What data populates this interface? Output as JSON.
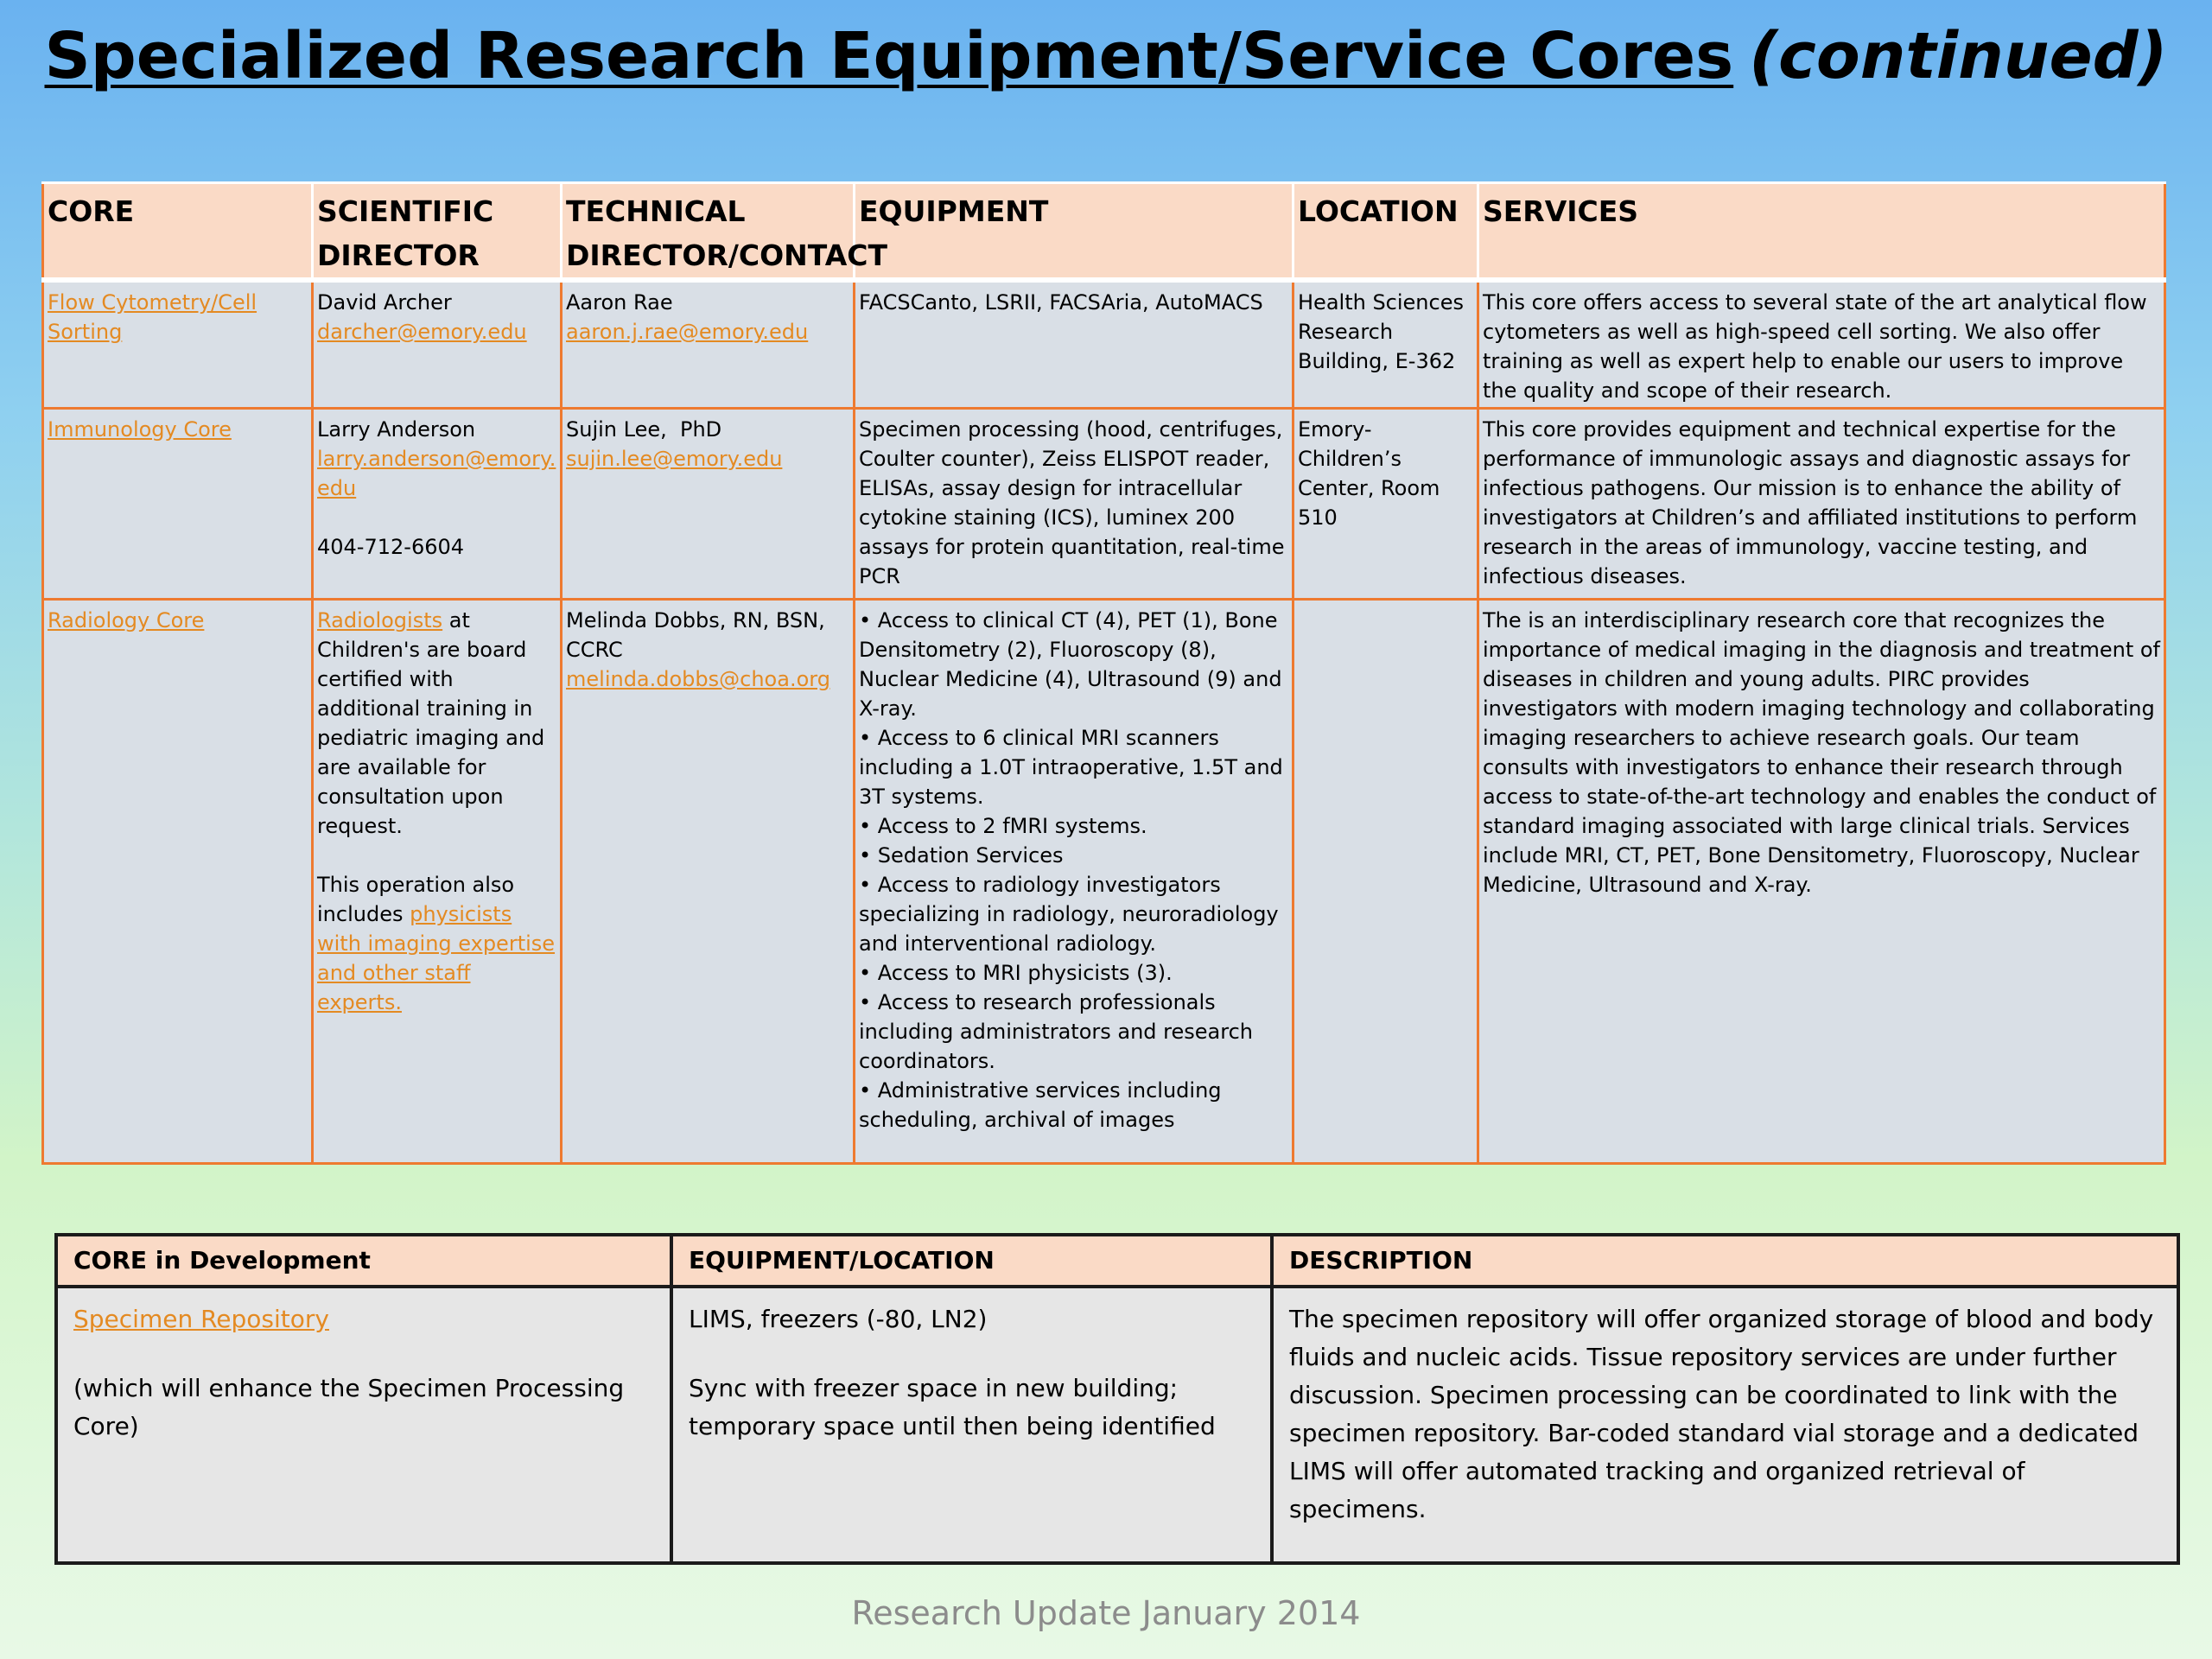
{
  "title": {
    "main": "Specialized Research Equipment/Service Cores",
    "continued": "(continued)"
  },
  "cores_table": {
    "headers": {
      "core": "CORE",
      "scientific_director": "SCIENTIFIC\nDIRECTOR",
      "technical_director": "TECHNICAL\nDIRECTOR/CONTACT",
      "equipment": "EQUIPMENT",
      "location": "LOCATION",
      "services": "SERVICES"
    },
    "rows": [
      {
        "core": "Flow Cytometry/Cell Sorting",
        "sci_name": "David Archer",
        "sci_email": "darcher@emory.edu",
        "tech_name": "Aaron Rae",
        "tech_email": "aaron.j.rae@emory.edu",
        "equipment": "FACSCanto, LSRII, FACSAria, AutoMACS",
        "location": "Health Sciences Research Building, E-362",
        "services": "This core offers access to several state of the art analytical flow cytometers as well as high-speed cell sorting. We also offer training as well as expert help to enable our users to improve the quality and scope of their research."
      },
      {
        "core": "Immunology Core",
        "sci_name": "Larry Anderson",
        "sci_email": "larry.anderson@emory.edu",
        "sci_phone": "404-712-6604",
        "tech_name": "Sujin Lee,  PhD",
        "tech_email": "sujin.lee@emory.edu",
        "equipment": "Specimen processing (hood, centrifuges, Coulter counter), Zeiss ELISPOT reader, ELISAs, assay design for intracellular cytokine staining (ICS), luminex 200 assays for protein quantitation, real-time PCR",
        "location": "Emory-Children’s Center, Room 510",
        "services": "This core provides equipment and technical expertise for the performance of immunologic assays and diagnostic assays for infectious pathogens. Our mission is to enhance the ability of investigators at Children’s and affiliated institutions to perform research in the areas of immunology, vaccine testing, and infectious diseases."
      },
      {
        "core": "Radiology Core",
        "sci_link": "Radiologists",
        "sci_text": " at Children's are board certified with additional training in pediatric imaging and are available for consultation upon request.",
        "sci_text2": "This operation also includes ",
        "sci_link2": "physicists with imaging expertise and other staff experts.",
        "tech_name": "Melinda Dobbs, RN, BSN, CCRC",
        "tech_email": "melinda.dobbs@choa.org",
        "equipment": "• Access to clinical CT (4), PET (1), Bone Densitometry (2), Fluoroscopy (8), Nuclear Medicine (4), Ultrasound (9) and X-ray.\n• Access to 6 clinical MRI scanners including a 1.0T intraoperative, 1.5T and 3T systems.\n• Access to 2 fMRI systems.\n• Sedation Services\n• Access to radiology investigators specializing in radiology, neuroradiology and interventional radiology.\n• Access to MRI physicists (3).\n• Access to research professionals including administrators and research coordinators.\n• Administrative services including scheduling, archival of images",
        "location": "",
        "services": "The is an interdisciplinary research core that recognizes the importance of medical imaging in the diagnosis and treatment of diseases in children and young adults. PIRC provides investigators with modern imaging technology and collaborating imaging researchers to achieve research goals. Our team consults with investigators to enhance their research through access to state-of-the-art technology and enables the conduct of standard imaging associated with large clinical trials. Services include MRI, CT, PET, Bone Densitometry, Fluoroscopy, Nuclear Medicine, Ultrasound and X-ray."
      }
    ]
  },
  "dev_table": {
    "headers": {
      "core": "CORE in Development",
      "equipment": "EQUIPMENT/LOCATION",
      "description": "DESCRIPTION"
    },
    "row": {
      "core_link": "Specimen Repository",
      "core_note": "(which will enhance the Specimen Processing Core)",
      "equipment1": "LIMS, freezers (-80, LN2)",
      "equipment2": "Sync with freezer space in new building; temporary space until then being identified",
      "description": "The specimen repository will offer organized storage of blood and body fluids and nucleic acids. Tissue repository services are under further discussion. Specimen processing can be coordinated to link with the specimen repository. Bar-coded standard vial storage and a dedicated LIMS will offer automated tracking and organized retrieval of specimens."
    }
  },
  "footer": "Research Update January 2014",
  "colors": {
    "header_fill": "#fadac6",
    "cell_fill": "#d9dfe6",
    "orange_border": "#ee7a30",
    "link": "#e48a22"
  }
}
